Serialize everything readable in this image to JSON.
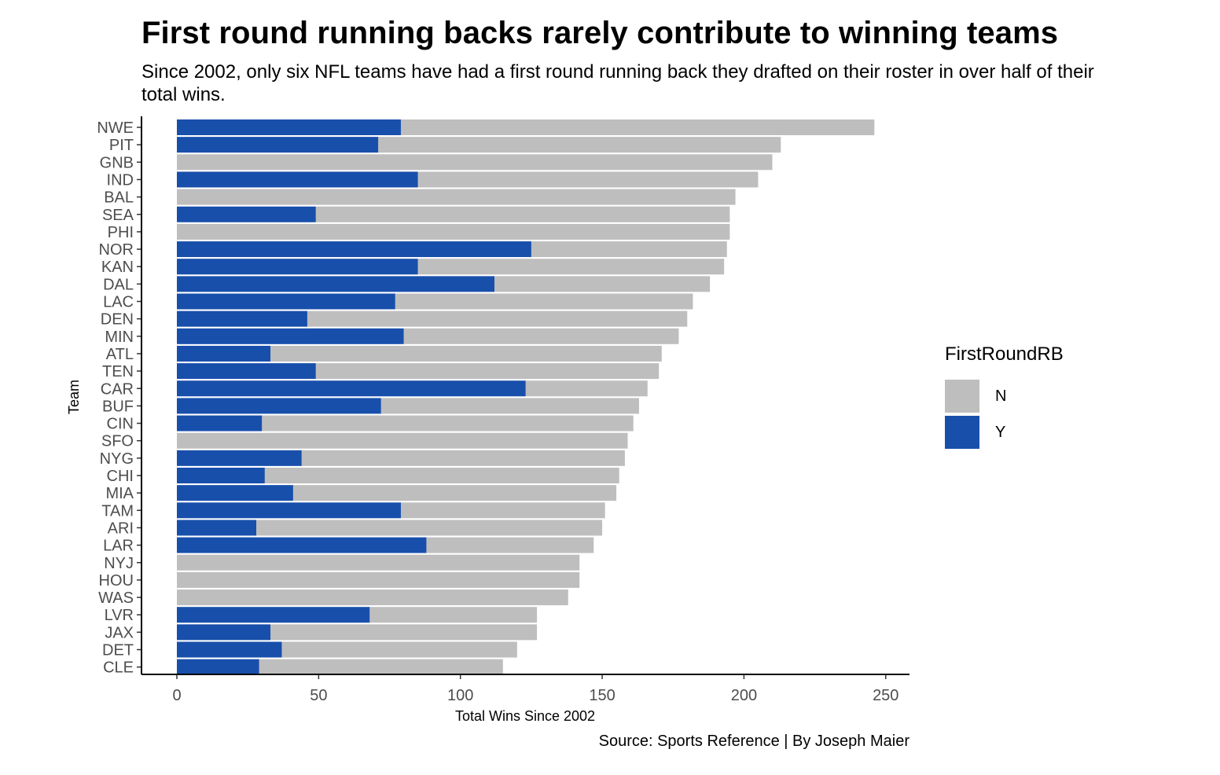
{
  "title": "First round running backs rarely contribute to winning teams",
  "subtitle": "Since 2002, only six NFL teams have had a first round running back they drafted on their roster in over half of their total wins.",
  "caption": "Source: Sports Reference | By Joseph Maier",
  "colors": {
    "N": "#bebebe",
    "Y": "#184fab",
    "axis": "#000000",
    "tick_text": "#4d4d4d"
  },
  "legend": {
    "title": "FirstRoundRB",
    "items": [
      {
        "key": "N",
        "label": "N",
        "color": "#bebebe"
      },
      {
        "key": "Y",
        "label": "Y",
        "color": "#184fab"
      }
    ]
  },
  "chart_data": {
    "type": "bar",
    "orientation": "horizontal",
    "stacked": true,
    "title": "First round running backs rarely contribute to winning teams",
    "subtitle": "Since 2002, only six NFL teams have had a first round running back they drafted on their roster in over half of their total wins.",
    "xlabel": "Total Wins Since 2002",
    "ylabel": "Team",
    "xlim": [
      0,
      250
    ],
    "xticks": [
      0,
      50,
      100,
      150,
      200,
      250
    ],
    "grid": false,
    "legend_position": "right",
    "categories": [
      "NWE",
      "PIT",
      "GNB",
      "IND",
      "BAL",
      "SEA",
      "PHI",
      "NOR",
      "KAN",
      "DAL",
      "LAC",
      "DEN",
      "MIN",
      "ATL",
      "TEN",
      "CAR",
      "BUF",
      "CIN",
      "SFO",
      "NYG",
      "CHI",
      "MIA",
      "TAM",
      "ARI",
      "LAR",
      "NYJ",
      "HOU",
      "WAS",
      "LVR",
      "JAX",
      "DET",
      "CLE"
    ],
    "series": [
      {
        "name": "Y",
        "values": [
          79,
          71,
          0,
          85,
          0,
          49,
          0,
          125,
          85,
          112,
          77,
          46,
          80,
          33,
          49,
          123,
          72,
          30,
          0,
          44,
          31,
          41,
          79,
          28,
          88,
          0,
          0,
          0,
          68,
          33,
          37,
          29
        ]
      },
      {
        "name": "N",
        "values": [
          167,
          142,
          210,
          120,
          197,
          146,
          195,
          69,
          108,
          76,
          105,
          134,
          97,
          138,
          121,
          43,
          91,
          131,
          159,
          114,
          125,
          114,
          72,
          122,
          59,
          142,
          142,
          138,
          59,
          94,
          83,
          86
        ]
      }
    ],
    "totals": [
      246,
      213,
      210,
      205,
      197,
      195,
      195,
      194,
      193,
      188,
      182,
      180,
      177,
      171,
      170,
      166,
      163,
      161,
      159,
      158,
      156,
      155,
      151,
      150,
      147,
      142,
      142,
      138,
      127,
      127,
      120,
      115
    ]
  }
}
